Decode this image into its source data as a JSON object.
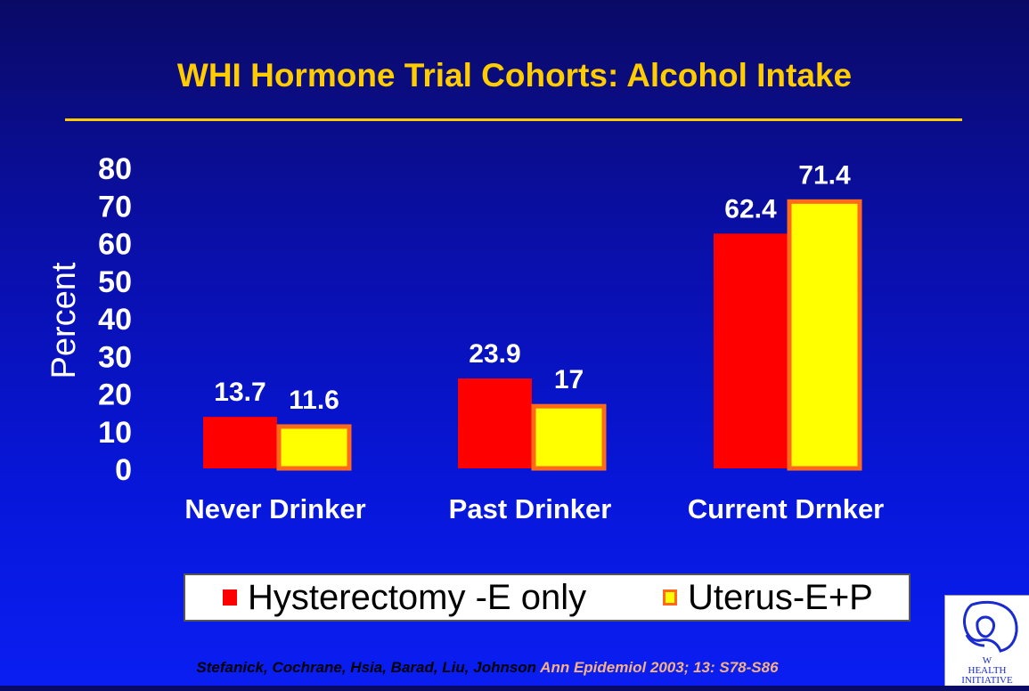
{
  "title": "WHI Hormone Trial Cohorts: Alcohol Intake",
  "citation": {
    "authors": "Stefanick, Cochrane, Hsia, Barad, Liu, Johnson",
    "journal": "Ann Epidemiol 2003; 13: S78-S86"
  },
  "logo": {
    "icon": "womens-health-initiative-logo",
    "text": "WOMEN'S HEALTH INITIATIVE"
  },
  "chart_data": {
    "type": "bar",
    "title": "WHI Hormone Trial Cohorts: Alcohol Intake",
    "xlabel": "",
    "ylabel": "Percent",
    "ylim": [
      0,
      80
    ],
    "yticks": [
      0,
      10,
      20,
      30,
      40,
      50,
      60,
      70,
      80
    ],
    "categories": [
      "Never Drinker",
      "Past Drinker",
      "Current Drnker"
    ],
    "series": [
      {
        "name": "Hysterectomy -E only",
        "values": [
          13.7,
          23.9,
          62.4
        ],
        "color": "#ff0000",
        "border": "#ff0000"
      },
      {
        "name": "Uterus-E+P",
        "values": [
          11.6,
          17,
          71.4
        ],
        "color": "#ffff00",
        "border": "#ff6a1a"
      }
    ],
    "data_labels": [
      [
        "13.7",
        "23.9",
        "62.4"
      ],
      [
        "11.6",
        "17",
        "71.4"
      ]
    ],
    "grid": false,
    "legend": "bottom"
  }
}
